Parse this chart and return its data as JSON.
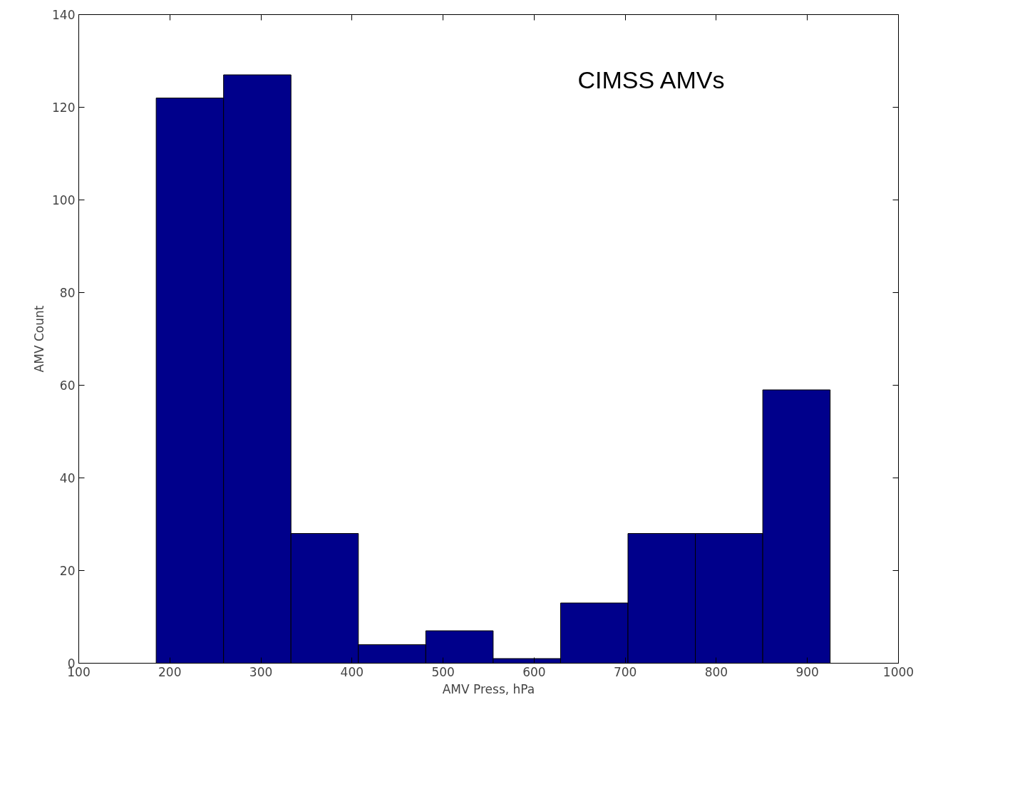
{
  "chart_data": {
    "type": "histogram",
    "xlabel": "AMV Press, hPa",
    "ylabel": "AMV Count",
    "bins": [
      185,
      259,
      333,
      407,
      481,
      555,
      629,
      703,
      777,
      851,
      925
    ],
    "values": [
      122,
      127,
      28,
      4,
      7,
      1,
      13,
      28,
      28,
      59
    ],
    "color": "#00008b",
    "xlim": [
      100,
      1000
    ],
    "xticks": [
      100,
      200,
      300,
      400,
      500,
      600,
      700,
      800,
      900,
      1000
    ],
    "ylim": [
      0,
      140
    ],
    "yticks": [
      0,
      20,
      40,
      60,
      80,
      100,
      120,
      140
    ],
    "annotations": [
      "CIMSS AMVs"
    ],
    "grid": false
  }
}
